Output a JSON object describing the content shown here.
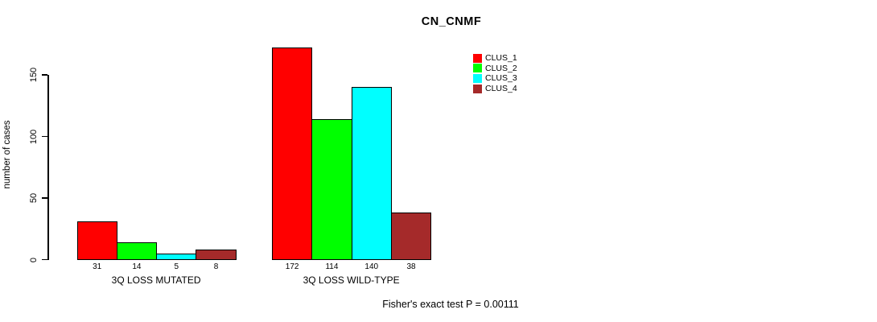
{
  "chart_data": {
    "type": "bar",
    "title": "CN_CNMF",
    "ylabel": "number of cases",
    "xlabel": "",
    "categories": [
      "3Q LOSS MUTATED",
      "3Q LOSS WILD-TYPE"
    ],
    "series": [
      {
        "name": "CLUS_1",
        "color": "#ff0000",
        "values": [
          31,
          172
        ]
      },
      {
        "name": "CLUS_2",
        "color": "#00ff00",
        "values": [
          14,
          114
        ]
      },
      {
        "name": "CLUS_3",
        "color": "#00ffff",
        "values": [
          5,
          140
        ]
      },
      {
        "name": "CLUS_4",
        "color": "#a52a2a",
        "values": [
          8,
          38
        ]
      }
    ],
    "show_bar_values": true,
    "yticks": [
      0,
      50,
      100,
      150
    ],
    "ylim": [
      0,
      180
    ],
    "grid": false,
    "legend_position": "top-right",
    "legend_border": false,
    "annotation": "Fisher's exact test P = 0.00111",
    "background_color": "#ffffff",
    "bar_border_color": "#000000"
  }
}
